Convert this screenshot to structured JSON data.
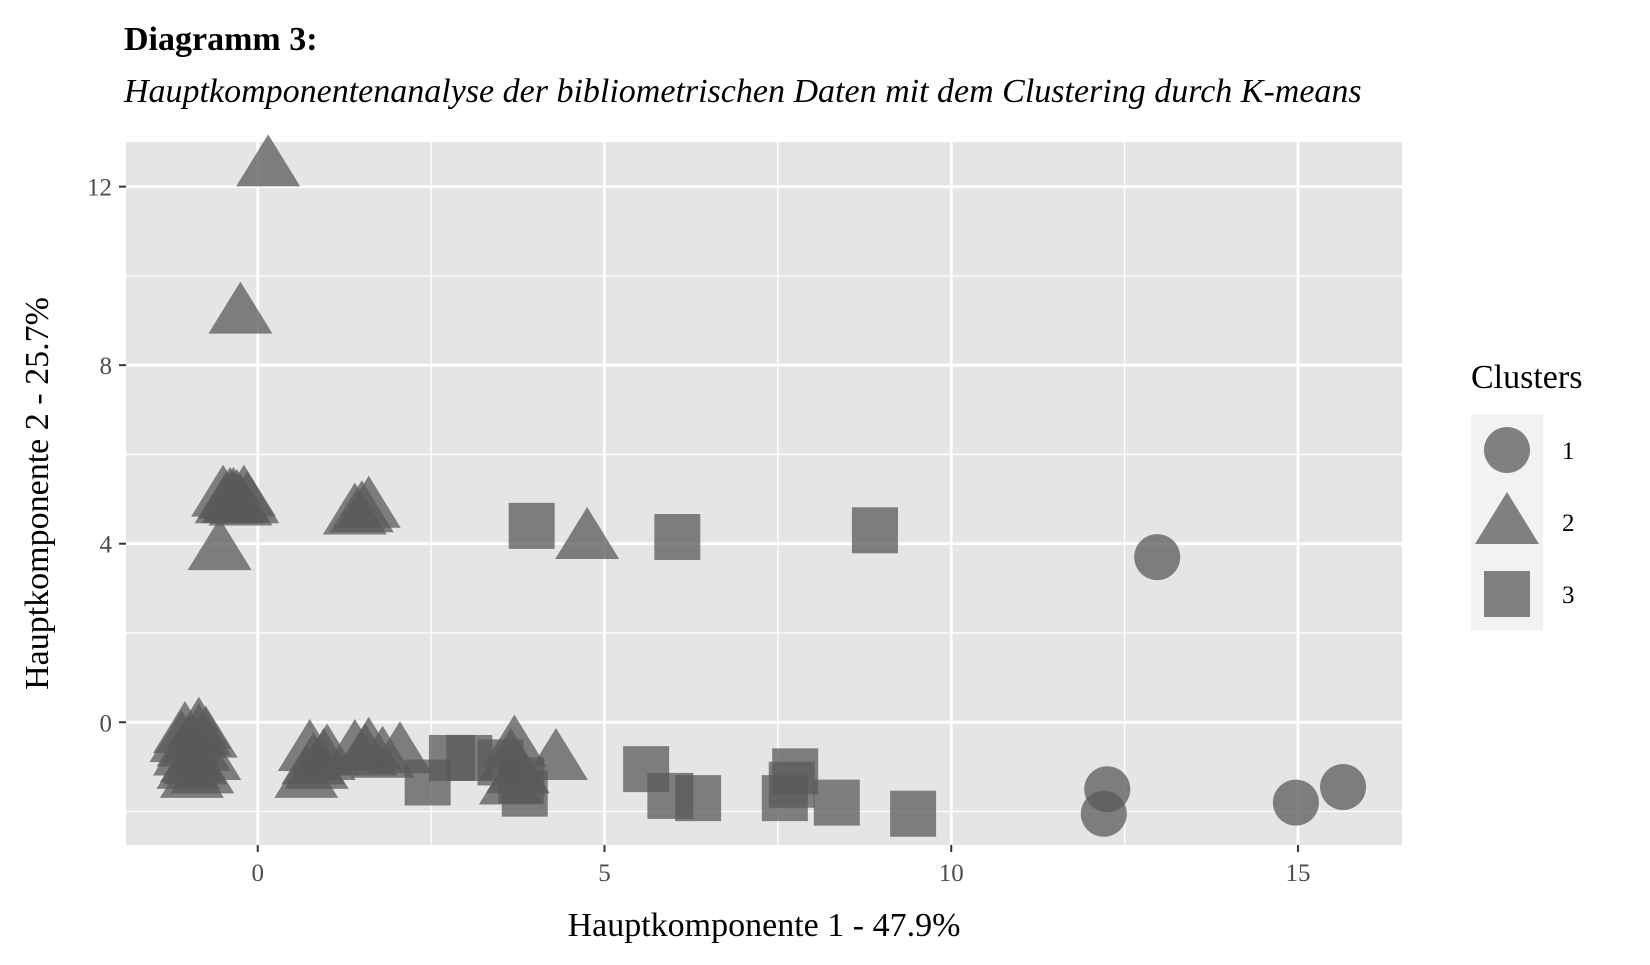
{
  "figure": {
    "number": "Diagramm 3:",
    "caption": "Hauptkomponentenanalyse der bibliometrischen Daten mit dem Clustering durch K-means"
  },
  "chart_data": {
    "type": "scatter",
    "xlabel": "Hauptkomponente 1 - 47.9%",
    "ylabel": "Hauptkomponente 2 - 25.7%",
    "xlim": [
      -1.9,
      16.5
    ],
    "ylim": [
      -2.75,
      13.0
    ],
    "x_ticks": [
      0,
      5,
      10,
      15
    ],
    "y_ticks": [
      0,
      4,
      8,
      12
    ],
    "grid": true,
    "legend": {
      "title": "Clusters",
      "position": "right"
    },
    "colors": {
      "panel": "#e5e5e5",
      "grid": "#ffffff",
      "point": "#595959"
    },
    "series": [
      {
        "name": "1",
        "shape": "circle",
        "points": [
          [
            12.97,
            3.7
          ],
          [
            12.25,
            -1.5
          ],
          [
            12.2,
            -2.05
          ],
          [
            14.97,
            -1.8
          ],
          [
            15.65,
            -1.45
          ]
        ]
      },
      {
        "name": "2",
        "shape": "triangle",
        "points": [
          [
            0.15,
            12.5
          ],
          [
            -0.25,
            9.2
          ],
          [
            -0.5,
            5.1
          ],
          [
            -0.35,
            5.05
          ],
          [
            -0.2,
            5.1
          ],
          [
            -0.3,
            5.0
          ],
          [
            -0.45,
            4.95
          ],
          [
            -0.25,
            4.9
          ],
          [
            -0.35,
            4.95
          ],
          [
            -0.15,
            4.95
          ],
          [
            -0.4,
            5.05
          ],
          [
            -0.55,
            3.9
          ],
          [
            1.4,
            4.7
          ],
          [
            1.6,
            4.85
          ],
          [
            1.5,
            4.75
          ],
          [
            4.75,
            4.15
          ],
          [
            -1.05,
            -0.2
          ],
          [
            -0.85,
            -0.1
          ],
          [
            -1.1,
            -0.4
          ],
          [
            -0.75,
            -0.3
          ],
          [
            -1.0,
            -0.5
          ],
          [
            -0.85,
            -0.6
          ],
          [
            -1.05,
            -0.7
          ],
          [
            -0.7,
            -0.8
          ],
          [
            -0.9,
            -0.9
          ],
          [
            -1.0,
            -1.0
          ],
          [
            -0.8,
            -1.1
          ],
          [
            -0.95,
            -1.2
          ],
          [
            -0.85,
            -0.25
          ],
          [
            -0.95,
            -0.85
          ],
          [
            0.75,
            -0.6
          ],
          [
            0.95,
            -0.8
          ],
          [
            0.85,
            -1.0
          ],
          [
            0.7,
            -1.2
          ],
          [
            1.0,
            -0.7
          ],
          [
            0.8,
            -0.9
          ],
          [
            1.4,
            -0.6
          ],
          [
            1.6,
            -0.55
          ],
          [
            1.55,
            -0.7
          ],
          [
            1.8,
            -0.75
          ],
          [
            2.05,
            -0.65
          ],
          [
            3.7,
            -0.5
          ],
          [
            3.65,
            -0.8
          ],
          [
            3.75,
            -1.1
          ],
          [
            3.65,
            -1.35
          ],
          [
            4.3,
            -0.8
          ]
        ]
      },
      {
        "name": "3",
        "shape": "square",
        "points": [
          [
            3.95,
            4.4
          ],
          [
            6.05,
            4.15
          ],
          [
            8.9,
            4.3
          ],
          [
            2.8,
            -0.8
          ],
          [
            3.05,
            -0.8
          ],
          [
            2.45,
            -1.35
          ],
          [
            3.5,
            -0.9
          ],
          [
            3.8,
            -1.3
          ],
          [
            3.85,
            -1.6
          ],
          [
            5.6,
            -1.05
          ],
          [
            5.95,
            -1.65
          ],
          [
            6.35,
            -1.7
          ],
          [
            7.75,
            -1.1
          ],
          [
            7.7,
            -1.4
          ],
          [
            7.6,
            -1.7
          ],
          [
            8.35,
            -1.8
          ],
          [
            9.45,
            -2.05
          ]
        ]
      }
    ]
  }
}
